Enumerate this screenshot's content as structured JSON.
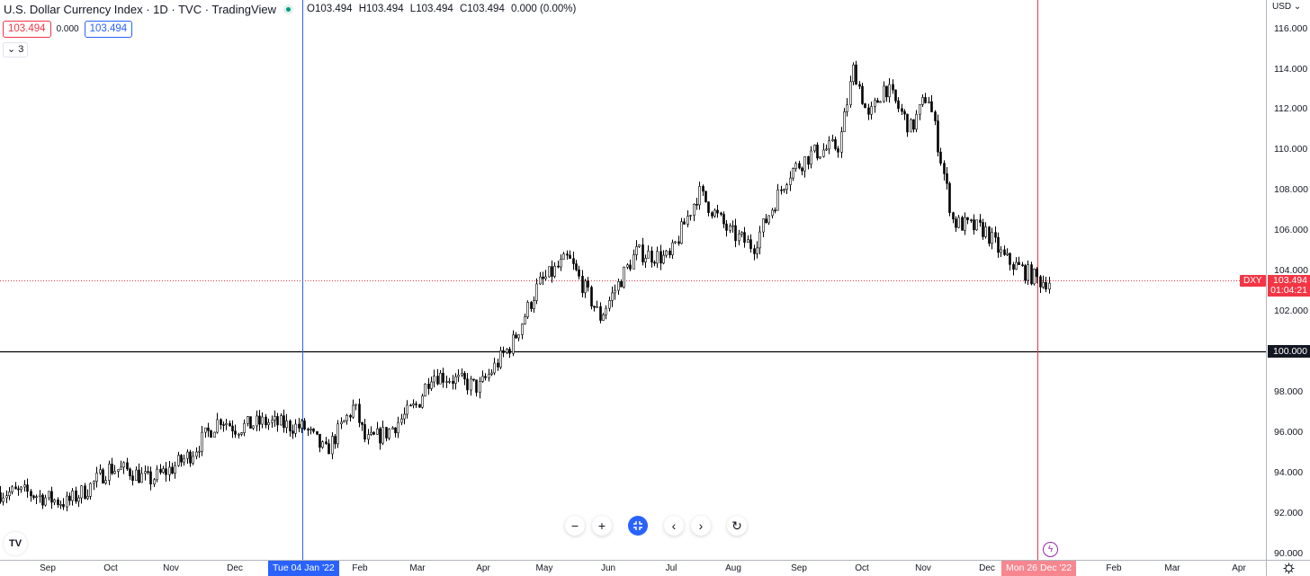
{
  "header": {
    "title": "U.S. Dollar Currency Index · 1D · TVC · TradingView",
    "status_dot_color": "#089981",
    "ohlc": {
      "open": "O103.494",
      "high": "H103.494",
      "low": "L103.494",
      "close": "C103.494",
      "change": "0.000 (0.00%)"
    },
    "sell_price": "103.494",
    "spread": "0.000",
    "buy_price": "103.494",
    "indicators_toggle": "3"
  },
  "price_axis": {
    "currency": "USD",
    "labels": [
      "116.000",
      "114.000",
      "112.000",
      "110.000",
      "108.000",
      "106.000",
      "104.000",
      "102.000",
      "100.000",
      "98.000",
      "96.000",
      "94.000",
      "92.000",
      "90.000"
    ],
    "last_price_symbol": "DXY",
    "last_price": "103.494",
    "countdown": "01:04:21",
    "horizontal_line_price": "100.000"
  },
  "time_axis": {
    "labels": [
      "Sep",
      "Oct",
      "Nov",
      "Dec",
      "Feb",
      "Mar",
      "Apr",
      "May",
      "Jun",
      "Jul",
      "Aug",
      "Sep",
      "Oct",
      "Nov",
      "Dec",
      "Feb",
      "Mar",
      "Apr"
    ],
    "crosshair_date": "Tue 04 Jan '22",
    "current_date": "Mon 26 Dec '22",
    "year_label_hidden": "2022"
  },
  "nav_buttons": {
    "zoom_out": "−",
    "zoom_in": "+",
    "reset_scale": "⤢",
    "scroll_left": "‹",
    "scroll_right": "›",
    "reset": "↻"
  },
  "colors": {
    "candle": "#000000",
    "last_price": "#f23645",
    "crosshair_blue": "#2962ff",
    "crosshair_red": "#f23645",
    "hline": "#000000"
  },
  "chart_data": {
    "type": "candlestick",
    "title": "U.S. Dollar Currency Index · 1D · TVC",
    "xlabel": "",
    "ylabel": "USD",
    "ylim": [
      90,
      116.5
    ],
    "grid": false,
    "horizontal_line": 100.0,
    "last_price": 103.494,
    "x": [
      "2021-08-20",
      "2021-09-01",
      "2021-09-10",
      "2021-09-20",
      "2021-09-30",
      "2021-10-10",
      "2021-10-20",
      "2021-11-01",
      "2021-11-10",
      "2021-11-24",
      "2021-12-01",
      "2021-12-15",
      "2022-01-04",
      "2022-01-14",
      "2022-01-28",
      "2022-02-04",
      "2022-02-15",
      "2022-03-01",
      "2022-03-07",
      "2022-03-15",
      "2022-03-29",
      "2022-04-15",
      "2022-04-28",
      "2022-05-12",
      "2022-05-27",
      "2022-06-14",
      "2022-06-30",
      "2022-07-14",
      "2022-07-29",
      "2022-08-10",
      "2022-08-26",
      "2022-09-07",
      "2022-09-20",
      "2022-09-27",
      "2022-10-04",
      "2022-10-12",
      "2022-10-25",
      "2022-11-03",
      "2022-11-15",
      "2022-11-30",
      "2022-12-09",
      "2022-12-26"
    ],
    "values": [
      93.0,
      92.7,
      92.5,
      93.2,
      94.2,
      94.1,
      93.6,
      94.2,
      94.9,
      96.7,
      96.2,
      96.5,
      96.2,
      95.0,
      97.3,
      95.5,
      96.0,
      97.4,
      98.9,
      98.7,
      98.2,
      100.4,
      103.3,
      104.6,
      101.7,
      104.9,
      104.6,
      107.9,
      105.9,
      105.2,
      108.8,
      109.8,
      110.2,
      114.1,
      111.5,
      113.2,
      111.0,
      112.8,
      106.4,
      106.0,
      104.6,
      103.494
    ]
  }
}
